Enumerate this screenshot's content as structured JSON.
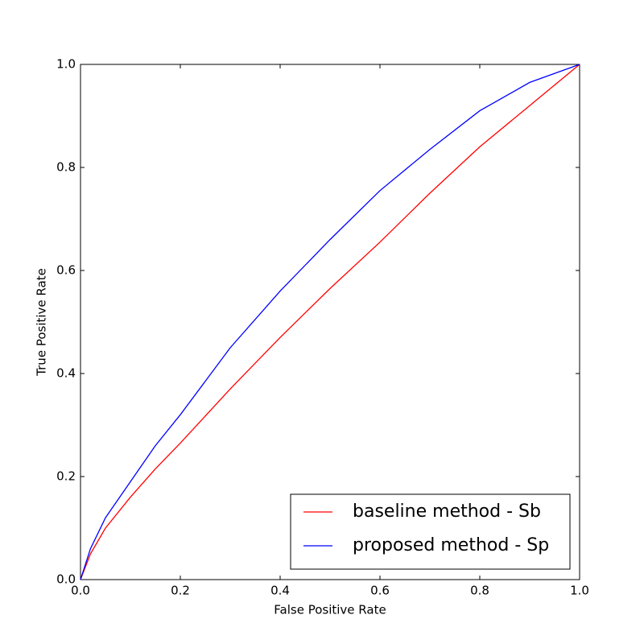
{
  "chart_data": {
    "type": "line",
    "xlabel": "False Positive Rate",
    "ylabel": "True Positive Rate",
    "x": [
      0,
      0.02,
      0.05,
      0.1,
      0.15,
      0.2,
      0.3,
      0.4,
      0.5,
      0.6,
      0.7,
      0.8,
      0.9,
      1
    ],
    "series": [
      {
        "name": "baseline method - Sb",
        "color": "#ff0000",
        "values": [
          0,
          0.05,
          0.1,
          0.16,
          0.215,
          0.265,
          0.37,
          0.47,
          0.565,
          0.655,
          0.75,
          0.84,
          0.92,
          1
        ]
      },
      {
        "name": "proposed method - Sp",
        "color": "#0000ff",
        "values": [
          0,
          0.06,
          0.12,
          0.19,
          0.26,
          0.32,
          0.45,
          0.56,
          0.66,
          0.755,
          0.835,
          0.91,
          0.965,
          1
        ]
      }
    ],
    "xlim": [
      0,
      1
    ],
    "ylim": [
      0,
      1
    ],
    "xticks": [
      {
        "value": 0,
        "label": "0.0"
      },
      0.2,
      0.4,
      0.6,
      0.8,
      {
        "value": 1,
        "label": "1.0"
      }
    ],
    "yticks": [
      {
        "value": 0,
        "label": "0.0"
      },
      0.2,
      0.4,
      0.6,
      0.8,
      {
        "value": 1,
        "label": "1.0"
      }
    ],
    "legend": "lower right"
  }
}
